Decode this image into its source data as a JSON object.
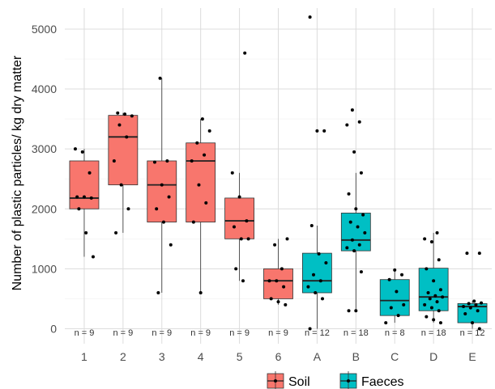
{
  "chart_data": {
    "type": "box",
    "ylabel": "Number of plastic particles/ kg dry matter",
    "xlabel": "",
    "ylim": [
      -250,
      5350
    ],
    "yticks": [
      0,
      1000,
      2000,
      3000,
      4000,
      5000
    ],
    "grid": true,
    "legend_position": "bottom",
    "legend": [
      {
        "name": "Soil",
        "color": "#F8766D"
      },
      {
        "name": "Faeces",
        "color": "#00BFC4"
      }
    ],
    "categories": [
      "1",
      "2",
      "3",
      "4",
      "5",
      "6",
      "A",
      "B",
      "C",
      "D",
      "E"
    ],
    "groups": [
      {
        "category": "1",
        "group": "Soil",
        "n_label": "n = 9",
        "q1": 2000,
        "median": 2180,
        "q3": 2800,
        "whisker_low": 1200,
        "whisker_high": 3000,
        "points": [
          3000,
          2950,
          2600,
          2200,
          2200,
          2180,
          2000,
          1600,
          1200
        ]
      },
      {
        "category": "2",
        "group": "Soil",
        "n_label": "n = 9",
        "q1": 2400,
        "median": 3200,
        "q3": 3560,
        "whisker_low": 1600,
        "whisker_high": 3600,
        "points": [
          3600,
          3580,
          3550,
          3400,
          3200,
          2800,
          2400,
          2000,
          1600
        ]
      },
      {
        "category": "3",
        "group": "Soil",
        "n_label": "n = 9",
        "q1": 1780,
        "median": 2400,
        "q3": 2800,
        "whisker_low": 600,
        "whisker_high": 4180,
        "points": [
          4180,
          2800,
          2780,
          2400,
          2200,
          2000,
          1780,
          1400,
          600
        ]
      },
      {
        "category": "4",
        "group": "Soil",
        "n_label": "n = 9",
        "q1": 1780,
        "median": 2800,
        "q3": 3100,
        "whisker_low": 600,
        "whisker_high": 3500,
        "points": [
          3500,
          3300,
          3100,
          2900,
          2800,
          2400,
          2100,
          1780,
          600
        ]
      },
      {
        "category": "5",
        "group": "Soil",
        "n_label": "n = 9",
        "q1": 1500,
        "median": 1800,
        "q3": 2180,
        "whisker_low": 800,
        "whisker_high": 2600,
        "points": [
          4600,
          2600,
          2200,
          1800,
          1700,
          1500,
          1500,
          1000,
          800
        ]
      },
      {
        "category": "6",
        "group": "Soil",
        "n_label": "n = 9",
        "q1": 500,
        "median": 800,
        "q3": 1000,
        "whisker_low": 400,
        "whisker_high": 1500,
        "points": [
          1500,
          1400,
          1000,
          800,
          800,
          700,
          500,
          450,
          400
        ]
      },
      {
        "category": "A",
        "group": "Faeces",
        "n_label": "n = 12",
        "q1": 600,
        "median": 800,
        "q3": 1260,
        "whisker_low": 0,
        "whisker_high": 1720,
        "points": [
          5200,
          3300,
          3300,
          1720,
          1250,
          1100,
          900,
          800,
          700,
          600,
          500,
          0
        ]
      },
      {
        "category": "B",
        "group": "Faeces",
        "n_label": "n = 18",
        "q1": 1300,
        "median": 1480,
        "q3": 1930,
        "whisker_low": 300,
        "whisker_high": 2600,
        "points": [
          3650,
          3450,
          3400,
          2950,
          2600,
          2250,
          2000,
          1900,
          1780,
          1700,
          1600,
          1480,
          1400,
          1350,
          1300,
          950,
          300,
          300
        ]
      },
      {
        "category": "C",
        "group": "Faeces",
        "n_label": "n = 8",
        "q1": 220,
        "median": 470,
        "q3": 820,
        "whisker_low": 100,
        "whisker_high": 980,
        "points": [
          980,
          900,
          820,
          620,
          400,
          350,
          220,
          100
        ]
      },
      {
        "category": "D",
        "group": "Faeces",
        "n_label": "n = 18",
        "q1": 300,
        "median": 530,
        "q3": 1010,
        "whisker_low": 100,
        "whisker_high": 1600,
        "points": [
          1600,
          1500,
          1450,
          1150,
          1000,
          800,
          650,
          600,
          550,
          530,
          500,
          450,
          400,
          350,
          300,
          200,
          150,
          100
        ]
      },
      {
        "category": "E",
        "group": "Faeces",
        "n_label": "n = 12",
        "q1": 100,
        "median": 370,
        "q3": 420,
        "whisker_low": 0,
        "whisker_high": 460,
        "points": [
          1260,
          1260,
          460,
          430,
          420,
          400,
          370,
          350,
          300,
          250,
          100,
          0
        ]
      }
    ]
  }
}
